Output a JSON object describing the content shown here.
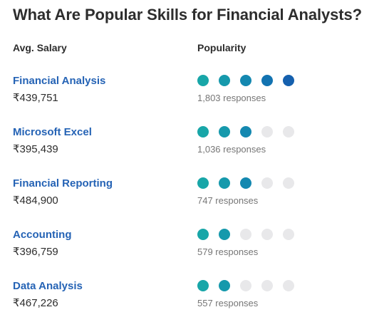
{
  "title": "What Are Popular Skills for Financial Analysts?",
  "headers": {
    "salary": "Avg. Salary",
    "popularity": "Popularity"
  },
  "colors": {
    "link": "#2563b5",
    "dot_empty": "#e8e8ea",
    "dot_fill": [
      "#18a6a8",
      "#1699ac",
      "#1488b0",
      "#1273b1",
      "#1560ae"
    ]
  },
  "popularity_scale_max": 5,
  "skills": [
    {
      "name": "Financial Analysis",
      "salary": "₹439,751",
      "popularity": 5,
      "responses": "1,803 responses"
    },
    {
      "name": "Microsoft Excel",
      "salary": "₹395,439",
      "popularity": 3,
      "responses": "1,036 responses"
    },
    {
      "name": "Financial Reporting",
      "salary": "₹484,900",
      "popularity": 3,
      "responses": "747 responses"
    },
    {
      "name": "Accounting",
      "salary": "₹396,759",
      "popularity": 2,
      "responses": "579 responses"
    },
    {
      "name": "Data Analysis",
      "salary": "₹467,226",
      "popularity": 2,
      "responses": "557 responses"
    }
  ]
}
